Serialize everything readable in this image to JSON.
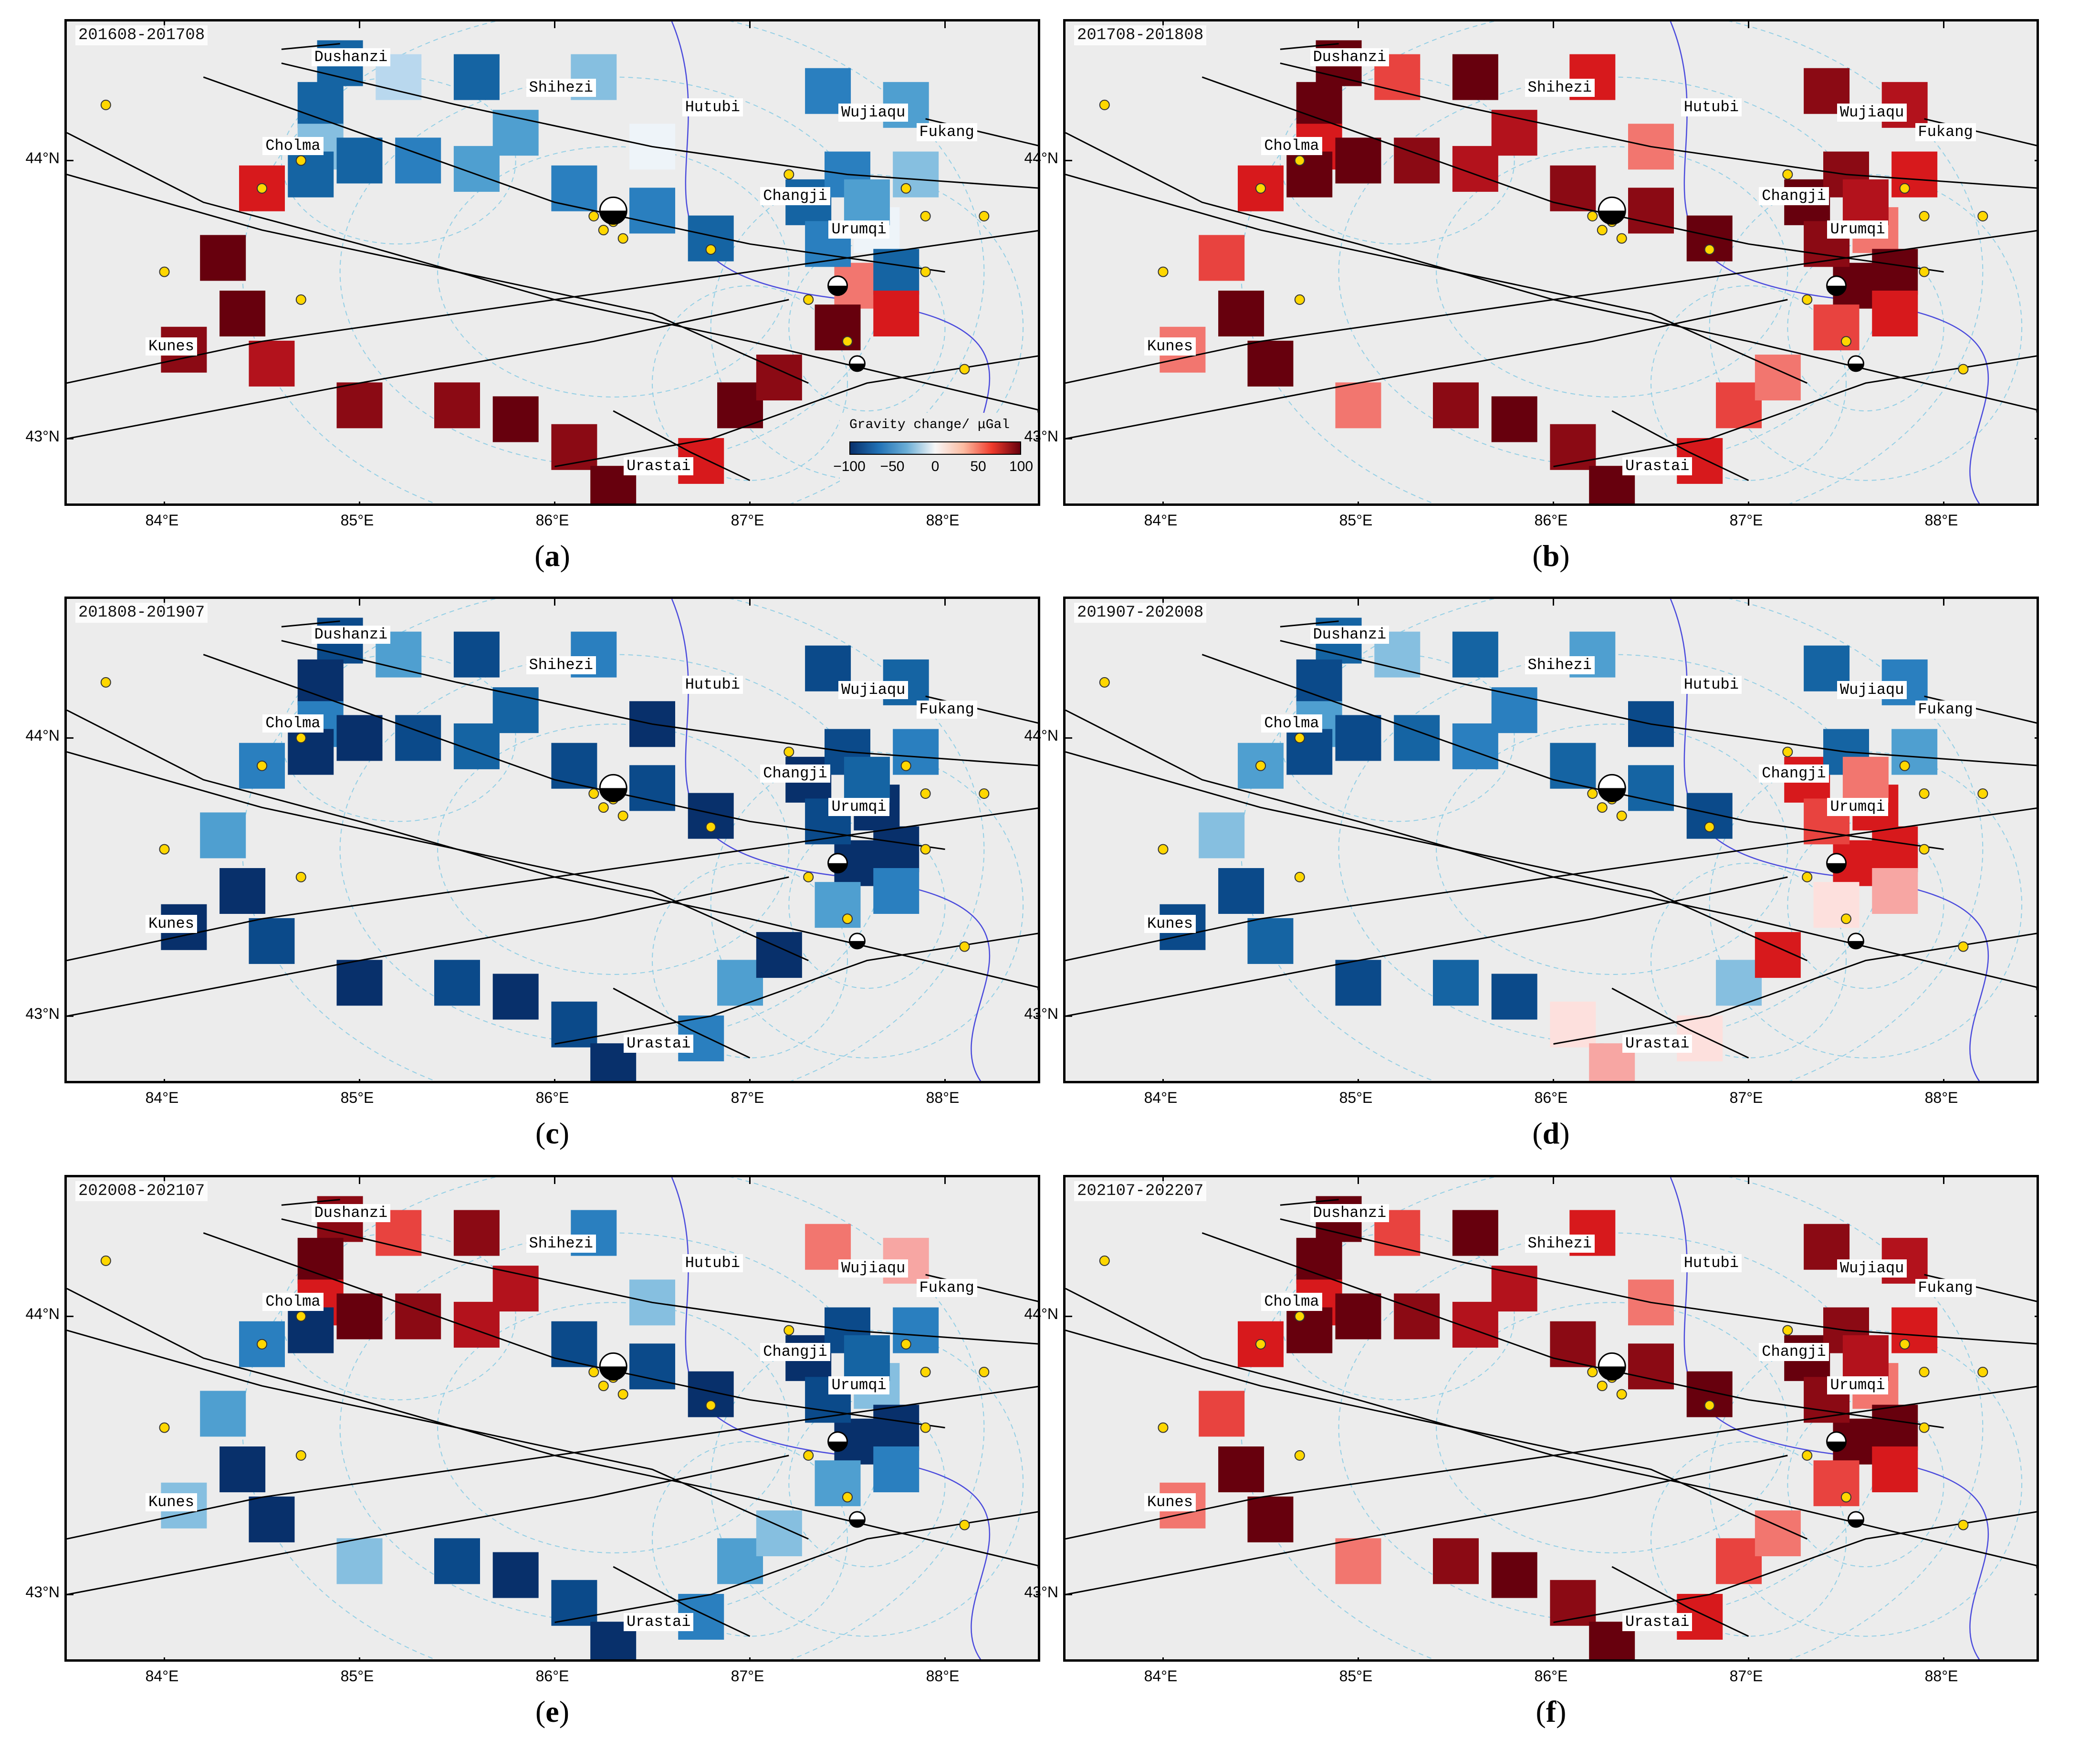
{
  "figure": {
    "legend": {
      "title": "Gravity change/ μGal",
      "ticks": [
        "−100",
        "−50",
        "0",
        "50",
        "100"
      ]
    },
    "lat_labels": [
      "44°N",
      "43°N"
    ],
    "lon_labels": [
      "84°E",
      "85°E",
      "86°E",
      "87°E",
      "88°E"
    ],
    "cities": [
      "Dushanzi",
      "Shihezi",
      "Hutubi",
      "Wujiaqu",
      "Fukang",
      "Cholma",
      "Changji",
      "Urumqi",
      "Kunes",
      "Urastai"
    ],
    "colors": {
      "strong_neg": "#0b2f6b",
      "neg": "#1f6fa8",
      "light_neg": "#9ecae1",
      "strong_pos": "#7a0010",
      "pos": "#d7191c",
      "light_pos": "#f4a5a5",
      "background": "#ececec",
      "event": "#ffd700"
    }
  },
  "panels": [
    {
      "id": "a",
      "label": "a",
      "period": "201608-201708",
      "tone": "mixed_a",
      "show_legend": true
    },
    {
      "id": "b",
      "label": "b",
      "period": "201708-201808",
      "tone": "positive",
      "show_legend": false
    },
    {
      "id": "c",
      "label": "c",
      "period": "201808-201907",
      "tone": "negative",
      "show_legend": false
    },
    {
      "id": "d",
      "label": "d",
      "period": "201907-202008",
      "tone": "mixed_d",
      "show_legend": false
    },
    {
      "id": "e",
      "label": "e",
      "period": "202008-202107",
      "tone": "mixed_e",
      "show_legend": false
    },
    {
      "id": "f",
      "label": "f",
      "period": "202107-202207",
      "tone": "positive",
      "show_legend": false
    }
  ]
}
